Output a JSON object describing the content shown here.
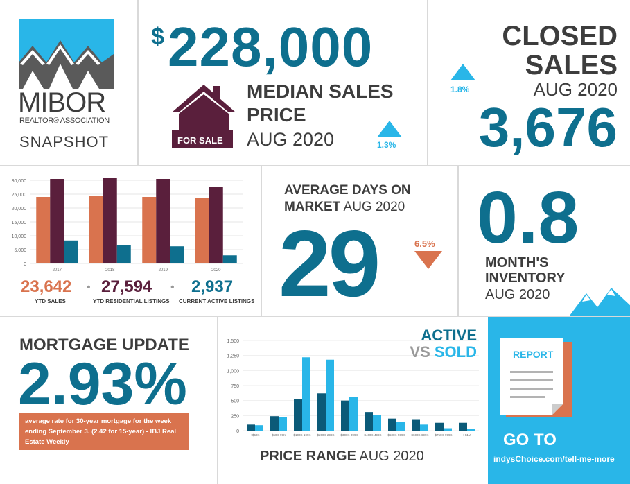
{
  "logo": {
    "brand": "MIBOR",
    "sub": "REALTOR® ASSOCIATION",
    "snapshot": "SNAPSHOT"
  },
  "median": {
    "value": "228,000",
    "dollar": "$",
    "label1": "MEDIAN SALES",
    "label2": "PRICE",
    "period": "AUG 2020",
    "change": "1.3%",
    "for_sale": "FOR SALE"
  },
  "closed": {
    "label1": "CLOSED",
    "label2": "SALES",
    "period": "AUG 2020",
    "value": "3,676",
    "change": "1.8%"
  },
  "ytd": {
    "sales_value": "23,642",
    "sales_label": "YTD SALES",
    "listings_value": "27,594",
    "listings_label": "YTD RESIDENTIAL LISTINGS",
    "active_value": "2,937",
    "active_label": "CURRENT ACTIVE LISTINGS"
  },
  "days": {
    "label1": "AVERAGE DAYS ON",
    "label2": "MARKET",
    "period": "AUG 2020",
    "value": "29",
    "change": "6.5%"
  },
  "inventory": {
    "value": "0.8",
    "label1": "MONTH'S",
    "label2": "INVENTORY",
    "period": "AUG 2020"
  },
  "mortgage": {
    "title": "MORTGAGE UPDATE",
    "value": "2.93%",
    "note": "average rate for 30-year mortgage for the week ending September 3. (2.42 for 15-year) - IBJ Real Estate Weekly"
  },
  "price_range": {
    "title_bold": "PRICE RANGE",
    "period": "AUG 2020",
    "active": "ACTIVE",
    "vs": "VS",
    "sold": "SOLD"
  },
  "report": {
    "label": "REPORT",
    "go_to": "GO TO",
    "url": "indysChoice.com/tell-me-more"
  },
  "colors": {
    "teal": "#0e6f8e",
    "plum": "#5a1f3c",
    "orange": "#d9734e",
    "sky": "#29b6e8",
    "dark_teal": "#0b5a78"
  },
  "chart_data": [
    {
      "type": "bar",
      "categories": [
        "2017",
        "2018",
        "2019",
        "2020"
      ],
      "series": [
        {
          "values": [
            24000,
            24500,
            24000,
            23642
          ]
        },
        {
          "values": [
            30500,
            31000,
            30500,
            27594
          ]
        },
        {
          "values": [
            8300,
            6500,
            6200,
            2937
          ]
        }
      ],
      "yticks": [
        "0",
        "5,000",
        "10,000",
        "15,000",
        "20,000",
        "25,000",
        "30,000"
      ],
      "ylim": [
        0,
        30000
      ]
    },
    {
      "type": "bar",
      "categories": [
        "<$50K",
        "$50K-99K",
        "$100K-199K",
        "$200K-299K",
        "$300K-399K",
        "$400K-499K",
        "$500K-599K",
        "$600K-699K",
        "$750K-999K",
        ">$1M"
      ],
      "series": [
        {
          "name": "ACTIVE",
          "values": [
            100,
            240,
            530,
            620,
            500,
            310,
            200,
            190,
            130,
            130
          ]
        },
        {
          "name": "SOLD",
          "values": [
            90,
            230,
            1220,
            1180,
            560,
            260,
            150,
            100,
            40,
            30
          ]
        }
      ],
      "yticks": [
        "0",
        "250",
        "500",
        "750",
        "1,000",
        "1,250",
        "1,500"
      ],
      "ylim": [
        0,
        1500
      ]
    }
  ]
}
